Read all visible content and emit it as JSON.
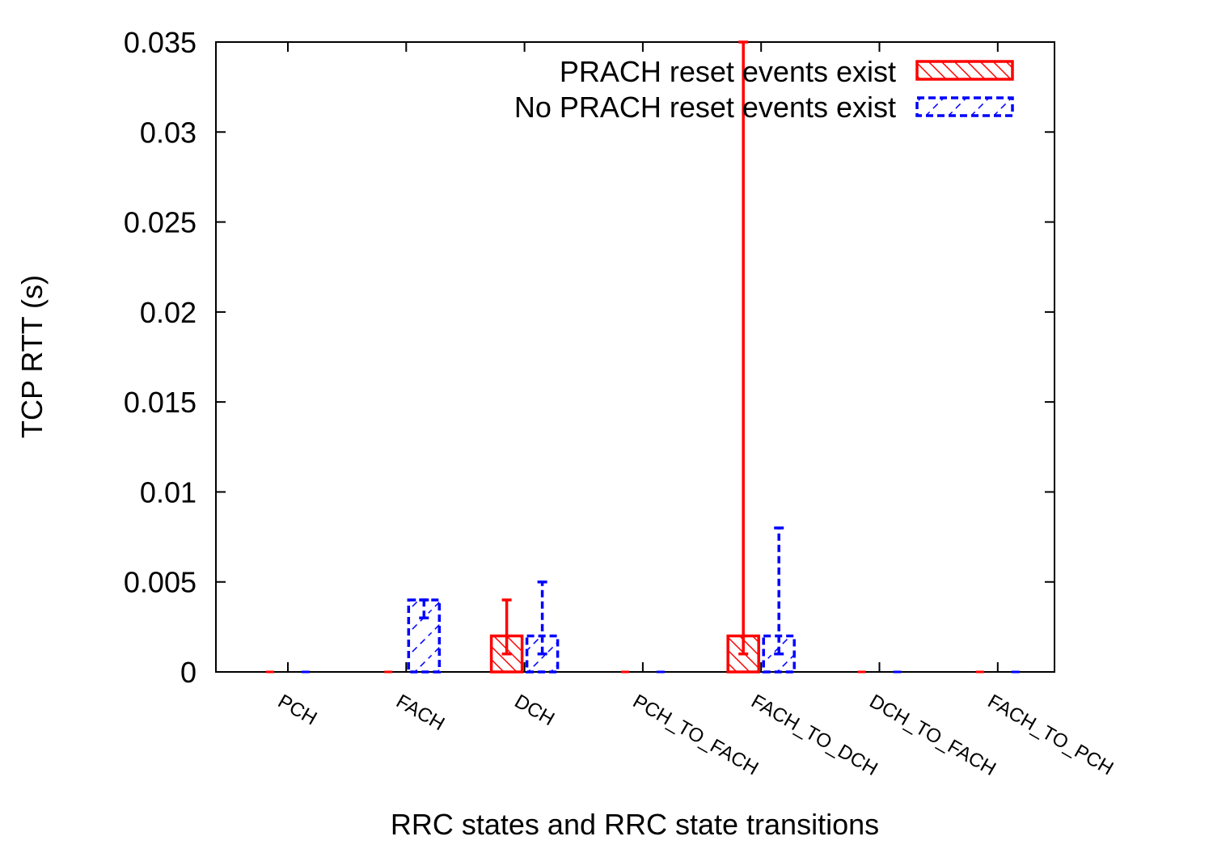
{
  "chart_data": {
    "type": "bar",
    "title": "",
    "xlabel": "RRC states and RRC state transitions",
    "ylabel": "TCP RTT (s)",
    "ylim": [
      0,
      0.035
    ],
    "yticks": [
      "0",
      "0.005",
      "0.01",
      "0.015",
      "0.02",
      "0.025",
      "0.03",
      "0.035"
    ],
    "categories": [
      "PCH",
      "FACH",
      "DCH",
      "PCH_TO_FACH",
      "FACH_TO_DCH",
      "DCH_TO_FACH",
      "FACH_TO_PCH"
    ],
    "legend_position": "top-right",
    "grid": false,
    "series": [
      {
        "name": "PRACH reset events exist",
        "color": "#ff0000",
        "pattern": "hatched-backslash, solid outline",
        "values": [
          0,
          0,
          0.002,
          0,
          0.002,
          0,
          0
        ],
        "error_low": [
          0,
          0,
          0.001,
          0,
          0.001,
          0,
          0
        ],
        "error_high": [
          0,
          0,
          0.004,
          0,
          0.035,
          0,
          0
        ]
      },
      {
        "name": "No PRACH reset events exist",
        "color": "#0000ff",
        "pattern": "hatched-slash, dashed outline",
        "values": [
          0,
          0.004,
          0.002,
          0,
          0.002,
          0,
          0
        ],
        "error_low": [
          0,
          0.003,
          0.001,
          0,
          0.001,
          0,
          0
        ],
        "error_high": [
          0,
          0.004,
          0.005,
          0,
          0.008,
          0,
          0
        ]
      }
    ]
  }
}
